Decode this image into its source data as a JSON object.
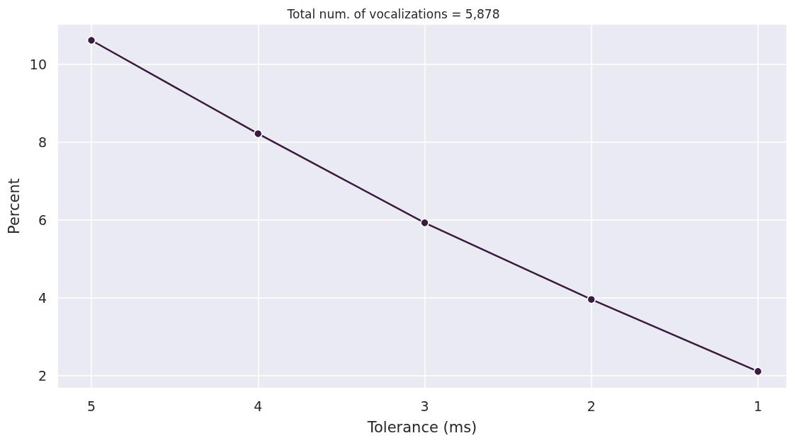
{
  "chart_data": {
    "type": "line",
    "title": "Total num. of vocalizations = 5,878",
    "xlabel": "Tolerance (ms)",
    "ylabel": "Percent",
    "x": [
      5,
      4,
      3,
      2,
      1
    ],
    "series": [
      {
        "color": "#3b1a40",
        "values": [
          10.62,
          8.22,
          5.93,
          3.96,
          2.11
        ]
      }
    ],
    "xlim": [
      5.2,
      0.83
    ],
    "xticks": [
      5,
      4,
      3,
      2,
      1
    ],
    "ylim": [
      1.69,
      11.02
    ],
    "yticks": [
      2,
      4,
      6,
      8,
      10
    ],
    "grid": true,
    "marker": "circle",
    "line_style": "solid"
  }
}
